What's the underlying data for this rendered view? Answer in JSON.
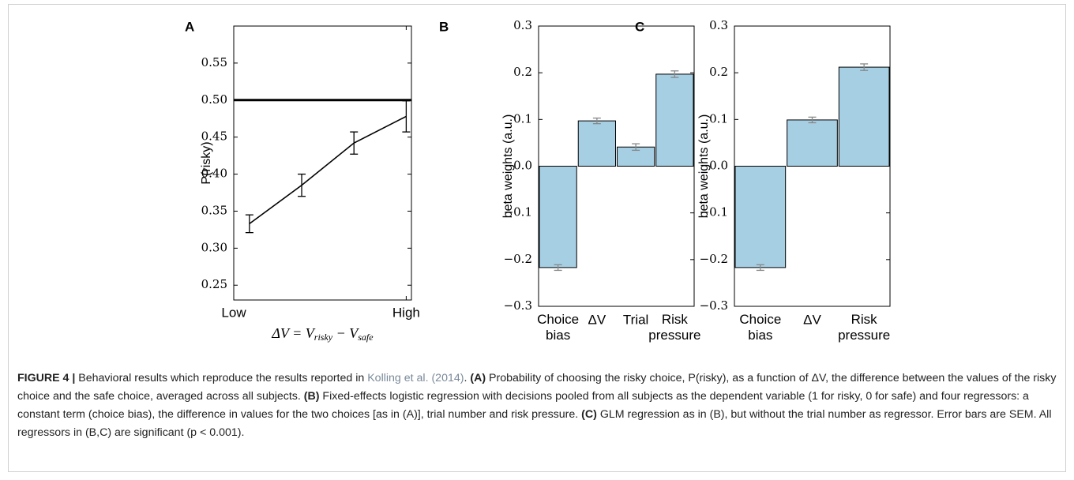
{
  "chart_data": [
    {
      "type": "line",
      "panel": "A",
      "ylabel": "P(risky)",
      "xlabel": [
        "ΔV = V",
        "risky",
        " − V",
        "safe"
      ],
      "x": [
        1,
        2,
        3,
        4
      ],
      "xlim": [
        0.7,
        4.1
      ],
      "xticks": [
        {
          "value": 0.7,
          "label": "Low"
        },
        {
          "value": 4,
          "label": "High"
        }
      ],
      "ylim": [
        0.23,
        0.6
      ],
      "yticks": [
        0.25,
        {
          "value": 0.3,
          "label": "0.30"
        },
        0.35,
        {
          "value": 0.4,
          "label": "0.40"
        },
        0.45,
        {
          "value": 0.5,
          "label": "0.50"
        },
        0.55
      ],
      "series": [
        {
          "color": "#000000",
          "values": [
            0.333,
            0.385,
            0.442,
            0.478
          ],
          "errors": [
            0.012,
            0.015,
            0.015,
            0.021
          ]
        }
      ],
      "hline": 0.5
    },
    {
      "type": "bar",
      "panel": "B",
      "ylabel": "beta weights (a.u.)",
      "categories": [
        "Choice bias",
        "ΔV",
        "Trial",
        "Risk pressure"
      ],
      "values": [
        -0.217,
        0.097,
        0.041,
        0.197
      ],
      "errors": [
        0.006,
        0.006,
        0.007,
        0.007
      ],
      "color": "#a6cfe4",
      "error_color": "#888888",
      "ylim": [
        -0.3,
        0.3
      ],
      "yticks": [
        {
          "value": -0.3,
          "label": "−0.3"
        },
        {
          "value": -0.2,
          "label": "−0.2"
        },
        {
          "value": -0.1,
          "label": "−0.1"
        },
        {
          "value": 0,
          "label": "0.0"
        },
        0.1,
        0.2,
        0.3
      ]
    },
    {
      "type": "bar",
      "panel": "C",
      "ylabel": "beta weights (a.u.)",
      "categories": [
        "Choice bias",
        "ΔV",
        "Risk pressure"
      ],
      "values": [
        -0.217,
        0.099,
        0.212
      ],
      "errors": [
        0.006,
        0.006,
        0.007
      ],
      "color": "#a6cfe4",
      "error_color": "#888888",
      "ylim": [
        -0.3,
        0.3
      ],
      "yticks": [
        {
          "value": -0.3,
          "label": "−0.3"
        },
        {
          "value": -0.2,
          "label": "−0.2"
        },
        {
          "value": -0.1,
          "label": "−0.1"
        },
        {
          "value": 0,
          "label": "0.0"
        },
        0.1,
        0.2,
        0.3
      ]
    }
  ],
  "caption": [
    {
      "text": "FIGURE 4 | ",
      "style": "bold"
    },
    {
      "text": "Behavioral results which reproduce the results reported in "
    },
    {
      "text": "Kolling et al. (2014)",
      "style": "link"
    },
    {
      "text": ". "
    },
    {
      "text": "(A)",
      "style": "bold"
    },
    {
      "text": " Probability of choosing the risky choice, P(risky), as a function of ΔV, the difference between the values of the risky choice and the safe choice, averaged across all subjects. "
    },
    {
      "text": "(B)",
      "style": "bold"
    },
    {
      "text": " Fixed-effects logistic regression with decisions pooled from all subjects as the dependent variable (1 for risky, 0 for safe) and four regressors: a constant term (choice bias), the difference in values for the two choices [as in (A)], trial number and risk pressure. "
    },
    {
      "text": "(C)",
      "style": "bold"
    },
    {
      "text": " GLM regression as in (B), but without the trial number as regressor. Error bars are SEM. All regressors in (B,C) are significant (p < 0.001)."
    }
  ]
}
